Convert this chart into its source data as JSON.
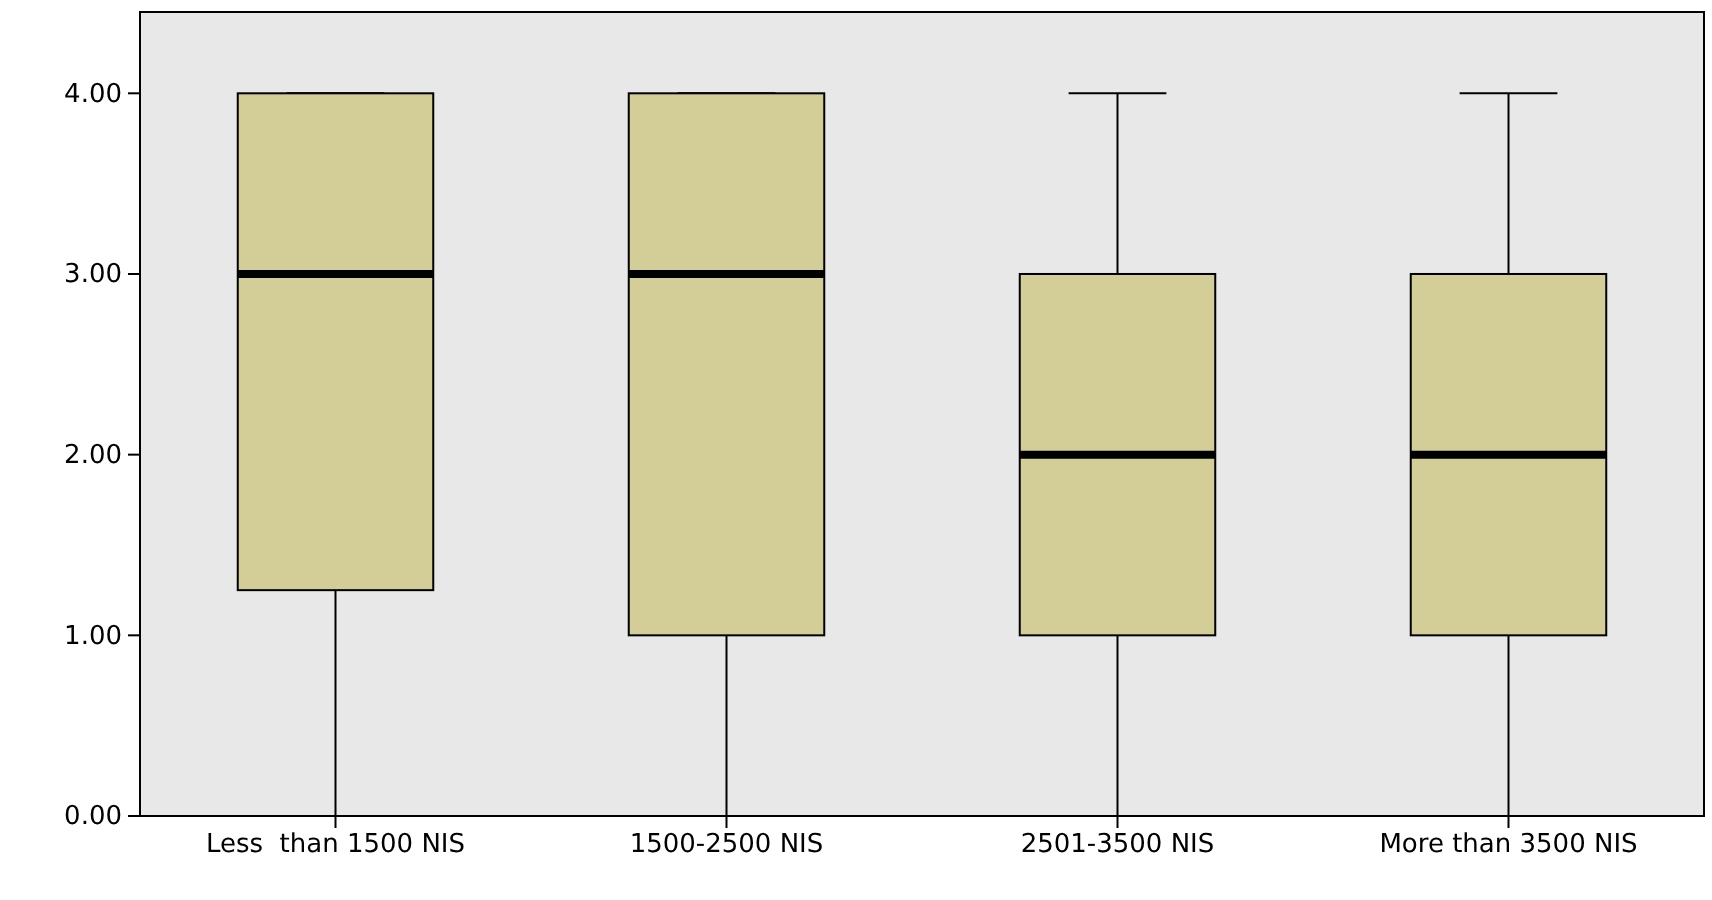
{
  "chart_data": {
    "type": "box",
    "categories": [
      "Less  than 1500 NIS",
      "1500-2500 NIS",
      "2501-3500 NIS",
      "More than 3500 NIS"
    ],
    "boxes": [
      {
        "low": 0,
        "q1": 1.25,
        "median": 3,
        "q3": 4,
        "high": 4
      },
      {
        "low": 0,
        "q1": 1,
        "median": 3,
        "q3": 4,
        "high": 4
      },
      {
        "low": 0,
        "q1": 1,
        "median": 2,
        "q3": 3,
        "high": 4
      },
      {
        "low": 0,
        "q1": 1,
        "median": 2,
        "q3": 3,
        "high": 4
      }
    ],
    "color": "#d3ce97",
    "ylim": [
      0,
      4.45
    ],
    "yticks": [
      {
        "value": 0,
        "label": "0.00"
      },
      {
        "value": 1,
        "label": "1.00"
      },
      {
        "value": 2,
        "label": "2.00"
      },
      {
        "value": 3,
        "label": "3.00"
      },
      {
        "value": 4,
        "label": "4.00"
      }
    ],
    "grid": false
  }
}
